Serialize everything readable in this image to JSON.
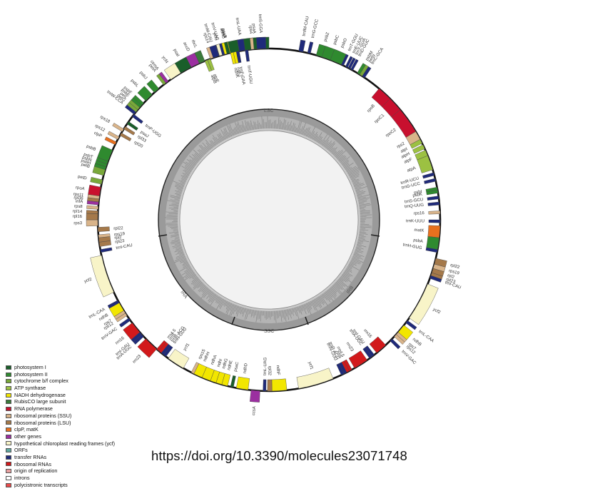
{
  "map": {
    "region_labels": [
      "LSC",
      "IRA",
      "SSC",
      "IRB"
    ]
  },
  "legend": {
    "items": [
      {
        "label": "photosystem I",
        "color": "#1a5e2a"
      },
      {
        "label": "photosystem II",
        "color": "#2f8a2f"
      },
      {
        "label": "cytochrome b/f complex",
        "color": "#79a83a"
      },
      {
        "label": "ATP synthase",
        "color": "#9cc142"
      },
      {
        "label": "NADH dehydrogenase",
        "color": "#f2e600"
      },
      {
        "label": "RubisCO large subunit",
        "color": "#3a7a3a"
      },
      {
        "label": "RNA polymerase",
        "color": "#c8102e"
      },
      {
        "label": "ribosomal proteins (SSU)",
        "color": "#d9b48a"
      },
      {
        "label": "ribosomal proteins (LSU)",
        "color": "#a5794a"
      },
      {
        "label": "clpP, matK",
        "color": "#e8701e"
      },
      {
        "label": "other genes",
        "color": "#9b2fa0"
      },
      {
        "label": "hypothetical chloroplast reading frames (ycf)",
        "color": "#f8f4c8"
      },
      {
        "label": "ORFs",
        "color": "#5fa8a0"
      },
      {
        "label": "transfer RNAs",
        "color": "#1f2a7a"
      },
      {
        "label": "ribosomal RNAs",
        "color": "#d2191b"
      },
      {
        "label": "origin of replication",
        "color": "#e7a0a0"
      },
      {
        "label": "introns",
        "color": "#ffffff"
      },
      {
        "label": "polycistronic transcripts",
        "color": "#e84a4a"
      }
    ]
  },
  "doi": "https://doi.org/10.3390/molecules23071748",
  "genes": [
    {
      "label": "psaA",
      "color": "#1a5e2a"
    },
    {
      "label": "psaB",
      "color": "#1a5e2a"
    },
    {
      "label": "rps14",
      "color": "#d9b48a"
    },
    {
      "label": "trnfM-CAU",
      "color": "#1f2a7a"
    },
    {
      "label": "trnG-GCC",
      "color": "#1f2a7a"
    },
    {
      "label": "psbZ",
      "color": "#2f8a2f"
    },
    {
      "label": "psbC",
      "color": "#2f8a2f"
    },
    {
      "label": "psbD",
      "color": "#2f8a2f"
    },
    {
      "label": "trnT-GGU",
      "color": "#1f2a7a"
    },
    {
      "label": "trnE-UUC",
      "color": "#1f2a7a"
    },
    {
      "label": "trnY-GUA",
      "color": "#1f2a7a"
    },
    {
      "label": "trnD-GUC",
      "color": "#1f2a7a"
    },
    {
      "label": "psbM",
      "color": "#2f8a2f"
    },
    {
      "label": "petN",
      "color": "#79a83a"
    },
    {
      "label": "trnC-GCA",
      "color": "#1f2a7a"
    },
    {
      "label": "rpoB",
      "color": "#c8102e"
    },
    {
      "label": "rpoC1",
      "color": "#c8102e"
    },
    {
      "label": "rpoC2",
      "color": "#c8102e"
    },
    {
      "label": "rps2",
      "color": "#d9b48a"
    },
    {
      "label": "atpI",
      "color": "#9cc142"
    },
    {
      "label": "atpH",
      "color": "#9cc142"
    },
    {
      "label": "atpF",
      "color": "#9cc142"
    },
    {
      "label": "atpA",
      "color": "#9cc142"
    },
    {
      "label": "trnR-UCU",
      "color": "#1f2a7a"
    },
    {
      "label": "trnG-UCC",
      "color": "#1f2a7a"
    },
    {
      "label": "psbI",
      "color": "#2f8a2f"
    },
    {
      "label": "psbK",
      "color": "#2f8a2f"
    },
    {
      "label": "trnS-GCU",
      "color": "#1f2a7a"
    },
    {
      "label": "trnQ-UUG",
      "color": "#1f2a7a"
    },
    {
      "label": "rps16",
      "color": "#d9b48a"
    },
    {
      "label": "trnK-UUU",
      "color": "#1f2a7a"
    },
    {
      "label": "matK",
      "color": "#e8701e"
    },
    {
      "label": "psbA",
      "color": "#2f8a2f"
    },
    {
      "label": "trnH-GUG",
      "color": "#1f2a7a"
    },
    {
      "label": "rpl22",
      "color": "#a5794a"
    },
    {
      "label": "rps19",
      "color": "#d9b48a"
    },
    {
      "label": "rpl2",
      "color": "#a5794a"
    },
    {
      "label": "rpl23",
      "color": "#a5794a"
    },
    {
      "label": "trnI-CAU",
      "color": "#1f2a7a"
    },
    {
      "label": "ycf2",
      "color": "#f8f4c8"
    },
    {
      "label": "trnL-CAA",
      "color": "#1f2a7a"
    },
    {
      "label": "ndhB",
      "color": "#f2e600"
    },
    {
      "label": "rps7",
      "color": "#d9b48a"
    },
    {
      "label": "rps12",
      "color": "#d9b48a"
    },
    {
      "label": "trnV-GAC",
      "color": "#1f2a7a"
    },
    {
      "label": "rrn16",
      "color": "#d2191b"
    },
    {
      "label": "trnI-GAU",
      "color": "#1f2a7a"
    },
    {
      "label": "trnA-UGC",
      "color": "#1f2a7a"
    },
    {
      "label": "rrn23",
      "color": "#d2191b"
    },
    {
      "label": "rrn4.5",
      "color": "#d2191b"
    },
    {
      "label": "rrn5",
      "color": "#d2191b"
    },
    {
      "label": "trnR-ACG",
      "color": "#1f2a7a"
    },
    {
      "label": "trnN-GUU",
      "color": "#1f2a7a"
    },
    {
      "label": "ycf1",
      "color": "#f8f4c8"
    },
    {
      "label": "ndhF",
      "color": "#f2e600"
    },
    {
      "label": "rpl32",
      "color": "#a5794a"
    },
    {
      "label": "trnL-UAG",
      "color": "#1f2a7a"
    },
    {
      "label": "ccsA",
      "color": "#9b2fa0"
    },
    {
      "label": "ndhD",
      "color": "#f2e600"
    },
    {
      "label": "psaC",
      "color": "#1a5e2a"
    },
    {
      "label": "ndhE",
      "color": "#f2e600"
    },
    {
      "label": "ndhG",
      "color": "#f2e600"
    },
    {
      "label": "ndhI",
      "color": "#f2e600"
    },
    {
      "label": "ndhA",
      "color": "#f2e600"
    },
    {
      "label": "ndhH",
      "color": "#f2e600"
    },
    {
      "label": "rps15",
      "color": "#d9b48a"
    },
    {
      "label": "ycf1",
      "color": "#f8f4c8"
    },
    {
      "label": "trnN-GUU",
      "color": "#1f2a7a"
    },
    {
      "label": "trnR-ACG",
      "color": "#1f2a7a"
    },
    {
      "label": "rrn5",
      "color": "#d2191b"
    },
    {
      "label": "rrn4.5",
      "color": "#d2191b"
    },
    {
      "label": "rrn23",
      "color": "#d2191b"
    },
    {
      "label": "trnA-UGC",
      "color": "#1f2a7a"
    },
    {
      "label": "trnI-GAU",
      "color": "#1f2a7a"
    },
    {
      "label": "rrn16",
      "color": "#d2191b"
    },
    {
      "label": "trnV-GAC",
      "color": "#1f2a7a"
    },
    {
      "label": "rps12",
      "color": "#d9b48a"
    },
    {
      "label": "rps7",
      "color": "#d9b48a"
    },
    {
      "label": "ndhB",
      "color": "#f2e600"
    },
    {
      "label": "trnL-CAA",
      "color": "#1f2a7a"
    },
    {
      "label": "ycf2",
      "color": "#f8f4c8"
    },
    {
      "label": "trnI-CAU",
      "color": "#1f2a7a"
    },
    {
      "label": "rpl23",
      "color": "#a5794a"
    },
    {
      "label": "rpl2",
      "color": "#a5794a"
    },
    {
      "label": "rps19",
      "color": "#d9b48a"
    },
    {
      "label": "rpl22",
      "color": "#a5794a"
    },
    {
      "label": "rps3",
      "color": "#d9b48a"
    },
    {
      "label": "rpl16",
      "color": "#a5794a"
    },
    {
      "label": "rpl14",
      "color": "#a5794a"
    },
    {
      "label": "rps8",
      "color": "#d9b48a"
    },
    {
      "label": "infA",
      "color": "#9b2fa0"
    },
    {
      "label": "rpl36",
      "color": "#a5794a"
    },
    {
      "label": "rps11",
      "color": "#d9b48a"
    },
    {
      "label": "rpoA",
      "color": "#c8102e"
    },
    {
      "label": "petD",
      "color": "#79a83a"
    },
    {
      "label": "petB",
      "color": "#79a83a"
    },
    {
      "label": "psbH",
      "color": "#2f8a2f"
    },
    {
      "label": "psbN",
      "color": "#2f8a2f"
    },
    {
      "label": "psbT",
      "color": "#2f8a2f"
    },
    {
      "label": "psbB",
      "color": "#2f8a2f"
    },
    {
      "label": "clpP",
      "color": "#e8701e"
    },
    {
      "label": "rps12",
      "color": "#d9b48a"
    },
    {
      "label": "rpl20",
      "color": "#a5794a"
    },
    {
      "label": "rps18",
      "color": "#d9b48a"
    },
    {
      "label": "rpl33",
      "color": "#a5794a"
    },
    {
      "label": "psaJ",
      "color": "#1a5e2a"
    },
    {
      "label": "trnP-UGG",
      "color": "#1f2a7a"
    },
    {
      "label": "trnW-CCA",
      "color": "#1f2a7a"
    },
    {
      "label": "petG",
      "color": "#79a83a"
    },
    {
      "label": "petL",
      "color": "#79a83a"
    },
    {
      "label": "psbE",
      "color": "#2f8a2f"
    },
    {
      "label": "psbF",
      "color": "#2f8a2f"
    },
    {
      "label": "psbL",
      "color": "#2f8a2f"
    },
    {
      "label": "psbJ",
      "color": "#2f8a2f"
    },
    {
      "label": "petA",
      "color": "#79a83a"
    },
    {
      "label": "cemA",
      "color": "#9b2fa0"
    },
    {
      "label": "ycf4",
      "color": "#f8f4c8"
    },
    {
      "label": "psaI",
      "color": "#1a5e2a"
    },
    {
      "label": "accD",
      "color": "#9b2fa0"
    },
    {
      "label": "rbcL",
      "color": "#3a7a3a"
    },
    {
      "label": "atpB",
      "color": "#9cc142"
    },
    {
      "label": "atpE",
      "color": "#9cc142"
    },
    {
      "label": "trnM-CAU",
      "color": "#1f2a7a"
    },
    {
      "label": "trnV-UAC",
      "color": "#1f2a7a"
    },
    {
      "label": "ndhC",
      "color": "#f2e600"
    },
    {
      "label": "ndhK",
      "color": "#f2e600"
    },
    {
      "label": "ndhJ",
      "color": "#f2e600"
    },
    {
      "label": "trnF-GAA",
      "color": "#1f2a7a"
    },
    {
      "label": "trnL-UAA",
      "color": "#1f2a7a"
    },
    {
      "label": "trnT-UGU",
      "color": "#1f2a7a"
    },
    {
      "label": "rps4",
      "color": "#d9b48a"
    },
    {
      "label": "trnS-GGA",
      "color": "#1f2a7a"
    },
    {
      "label": "ycf3",
      "color": "#f8f4c8"
    },
    {
      "label": "psaA",
      "color": "#1a5e2a"
    }
  ]
}
